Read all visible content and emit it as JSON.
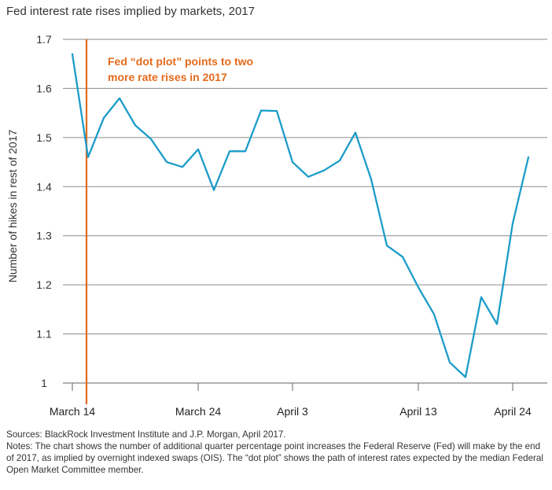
{
  "chart_data": {
    "type": "line",
    "title": "Fed interest rate rises implied by markets, 2017",
    "ylabel": "Number of hikes in rest of 2017",
    "xlabel": "",
    "ylim": [
      1,
      1.7
    ],
    "yticks": [
      "1",
      "1.1",
      "1.2",
      "1.3",
      "1.4",
      "1.5",
      "1.6",
      "1.7"
    ],
    "xticks": [
      {
        "label": "March 14",
        "x": 0
      },
      {
        "label": "March 24",
        "x": 8
      },
      {
        "label": "April 3",
        "x": 14
      },
      {
        "label": "April 13",
        "x": 22
      },
      {
        "label": "April 24",
        "x": 28
      }
    ],
    "xlim": [
      0,
      28.8
    ],
    "grid": "horizontal",
    "line_color": "#1c9cc9",
    "annotation_color": "#e46a1b",
    "annotation": {
      "lines": [
        "Fed “dot plot” points to two",
        "more rate rises in 2017"
      ],
      "vline_x": 0.9
    },
    "series": [
      {
        "x": [
          0,
          1,
          2,
          3,
          4,
          5,
          6,
          7,
          8,
          9,
          10,
          11,
          12,
          13,
          14,
          15,
          16,
          17,
          18,
          19,
          20,
          21,
          22,
          23,
          24,
          25,
          26,
          27,
          28,
          29
        ],
        "values": [
          1.67,
          1.46,
          1.54,
          1.58,
          1.525,
          1.497,
          1.45,
          1.44,
          1.476,
          1.393,
          1.472,
          1.472,
          1.555,
          1.554,
          1.45,
          1.42,
          1.433,
          1.453,
          1.51,
          1.415,
          1.28,
          1.257,
          1.195,
          1.14,
          1.042,
          1.012,
          1.175,
          1.12,
          1.325,
          1.46
        ]
      }
    ]
  },
  "footer": {
    "sources": "Sources: BlackRock Investment Institute and J.P. Morgan, April 2017.",
    "notes": "Notes: The chart shows the number of additional quarter percentage point increases the Federal Reserve (Fed) will make by the end of 2017, as implied by overnight indexed swaps (OIS). The “dot plot” shows the path of interest rates expected by the median Federal Open Market Committee member."
  }
}
